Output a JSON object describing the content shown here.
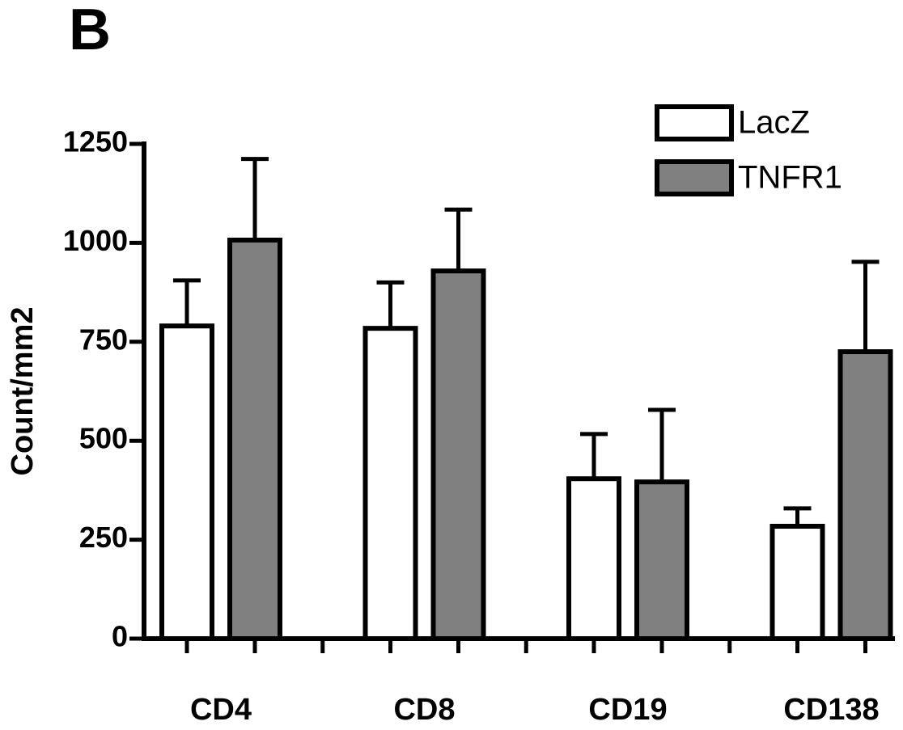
{
  "chart_data": {
    "type": "bar",
    "panel_label": "B",
    "y_label": "Count/mm2",
    "categories": [
      "CD4",
      "CD8",
      "CD19",
      "CD138"
    ],
    "series": [
      {
        "name": "LacZ",
        "color": "#ffffff",
        "values": [
          790,
          784,
          404,
          284
        ],
        "errors": [
          115,
          116,
          113,
          45
        ]
      },
      {
        "name": "TNFR1",
        "color": "#808080",
        "values": [
          1007,
          929,
          396,
          725
        ],
        "errors": [
          205,
          155,
          182,
          227
        ]
      }
    ],
    "ylim": [
      0,
      1250
    ],
    "yticks": [
      0,
      250,
      500,
      750,
      1000,
      1250
    ],
    "legend": "top-right"
  }
}
